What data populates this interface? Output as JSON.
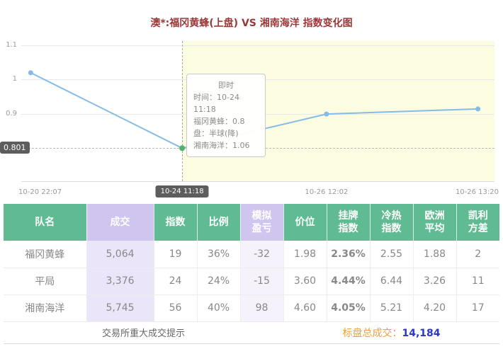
{
  "page": {
    "title": "澳*:福冈黄蜂(上盘) VS 湘南海洋 指数变化图"
  },
  "chart_data": {
    "type": "line",
    "title": "澳*:福冈黄蜂(上盘) VS 湘南海洋 指数变化图",
    "ylim": [
      0.705,
      1.112
    ],
    "y_ticks": [
      1.1,
      1.0,
      0.9
    ],
    "y_tick_labels": [
      "1.1",
      "1",
      "0.9"
    ],
    "x_tick_labels": [
      "10-20 22:07",
      "10-24 11:18",
      "10-26 12:02",
      "10-26 13:20"
    ],
    "series": [
      {
        "name": "福冈黄蜂指数",
        "x": [
          0.02,
          0.34,
          0.645,
          0.965
        ],
        "values": [
          1.02,
          0.801,
          0.9,
          0.915
        ]
      }
    ],
    "current_index": 1,
    "current_value": 0.801,
    "current_value_label": "0.801",
    "line_color": "#85bbe8",
    "current_point_color": "#4fb36a",
    "highlight_color": "#fcfce1",
    "legend_position": "none",
    "grid": true,
    "tooltip": {
      "title": "即时",
      "lines": [
        "时间：10-24 11:18",
        "福冈黄蜂：0.8",
        "盘：半球(降)",
        "湘南海洋：1.06"
      ]
    }
  },
  "table": {
    "headers": [
      {
        "line1": "队名",
        "line2": ""
      },
      {
        "line1": "成交",
        "line2": ""
      },
      {
        "line1": "指数",
        "line2": ""
      },
      {
        "line1": "比例",
        "line2": ""
      },
      {
        "line1": "模拟",
        "line2": "盈亏"
      },
      {
        "line1": "价位",
        "line2": ""
      },
      {
        "line1": "挂牌",
        "line2": "指数"
      },
      {
        "line1": "冷热",
        "line2": "指数"
      },
      {
        "line1": "欧洲",
        "line2": "平均"
      },
      {
        "line1": "凯利",
        "line2": "方差"
      }
    ],
    "rows": [
      {
        "name": "福冈黄蜂",
        "volume": "5,064",
        "index": "19",
        "ratio": "36%",
        "sim_pl": "-32",
        "price": "1.98",
        "listed_index": "2.36%",
        "hot_index": "2.55",
        "euro_avg": "1.88",
        "kelly_var": "2"
      },
      {
        "name": "平局",
        "volume": "3,376",
        "index": "24",
        "ratio": "24%",
        "sim_pl": "-15",
        "price": "3.60",
        "listed_index": "4.44%",
        "hot_index": "6.44",
        "euro_avg": "3.26",
        "kelly_var": "11"
      },
      {
        "name": "湘南海洋",
        "volume": "5,745",
        "index": "56",
        "ratio": "40%",
        "sim_pl": "98",
        "price": "4.60",
        "listed_index": "4.05%",
        "hot_index": "5.21",
        "euro_avg": "4.20",
        "kelly_var": "17"
      }
    ]
  },
  "footer": {
    "notice": "交易所重大成交提示",
    "total_label": "标盘总成交：",
    "total_value": "14,184"
  }
}
